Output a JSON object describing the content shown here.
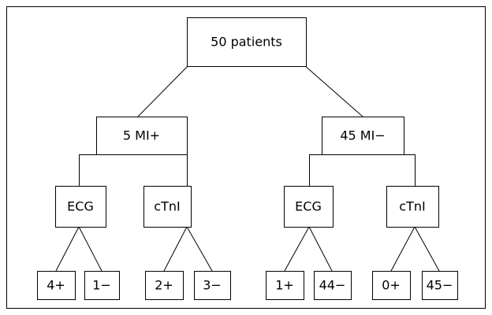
{
  "nodes": [
    {
      "label": "50 patients"
    },
    {
      "label": "5 MI+"
    },
    {
      "label": "45 MI−"
    },
    {
      "label": "ECG"
    },
    {
      "label": "cTnI"
    },
    {
      "label": "ECG"
    },
    {
      "label": "cTnI"
    },
    {
      "label": "4+"
    },
    {
      "label": "1−"
    },
    {
      "label": "2+"
    },
    {
      "label": "3−"
    },
    {
      "label": "1+"
    },
    {
      "label": "44−"
    },
    {
      "label": "0+"
    },
    {
      "label": "45−"
    }
  ]
}
